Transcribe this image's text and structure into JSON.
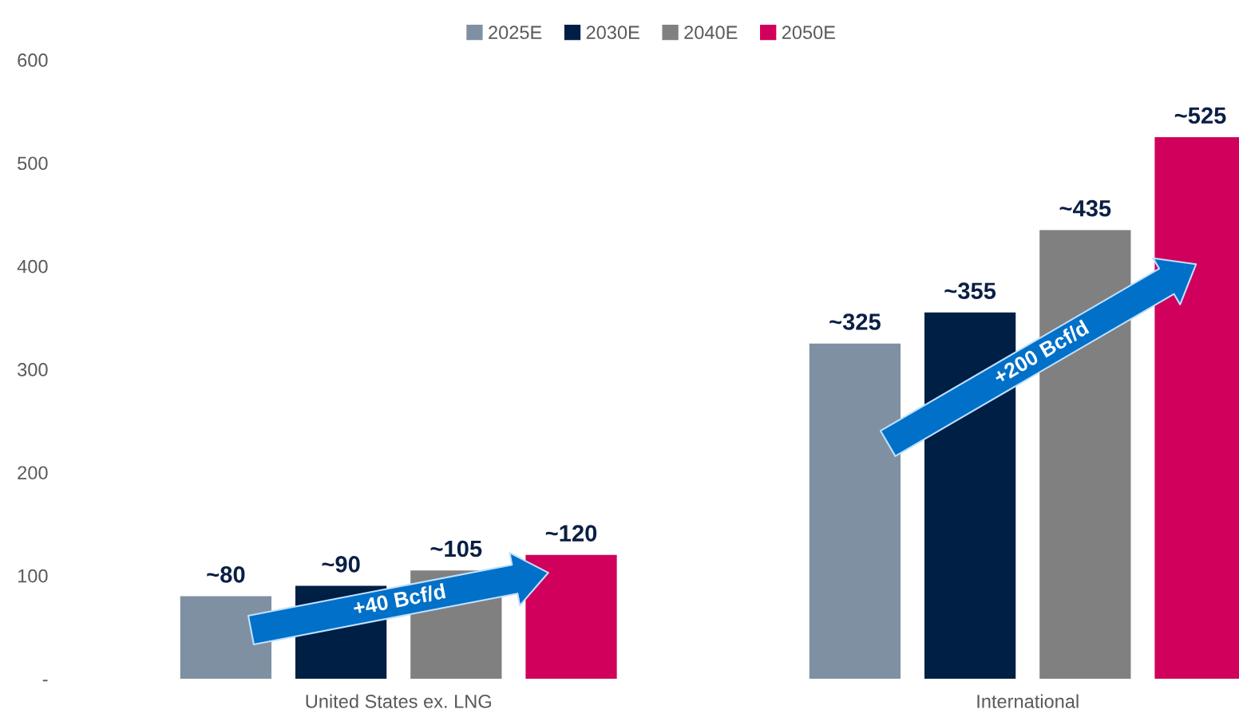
{
  "chart_data": {
    "type": "bar",
    "categories": [
      "United States ex. LNG",
      "International"
    ],
    "series": [
      {
        "name": "2025E",
        "color": "#8090a3",
        "values": [
          80,
          325
        ],
        "value_labels": [
          "~80",
          "~325"
        ]
      },
      {
        "name": "2030E",
        "color": "#001f45",
        "values": [
          90,
          355
        ],
        "value_labels": [
          "~90",
          "~355"
        ]
      },
      {
        "name": "2040E",
        "color": "#808080",
        "values": [
          105,
          435
        ],
        "value_labels": [
          "~105",
          "~435"
        ]
      },
      {
        "name": "2050E",
        "color": "#d0005c",
        "values": [
          120,
          525
        ],
        "value_labels": [
          "~120",
          "~525"
        ]
      }
    ],
    "ylim": [
      0,
      600
    ],
    "yticks": [
      {
        "value": 0,
        "label": "-"
      },
      100,
      200,
      300,
      400,
      500,
      600
    ],
    "legend": "top",
    "annotations": [
      "+40 Bcf/d",
      "+200 Bcf/d"
    ]
  }
}
